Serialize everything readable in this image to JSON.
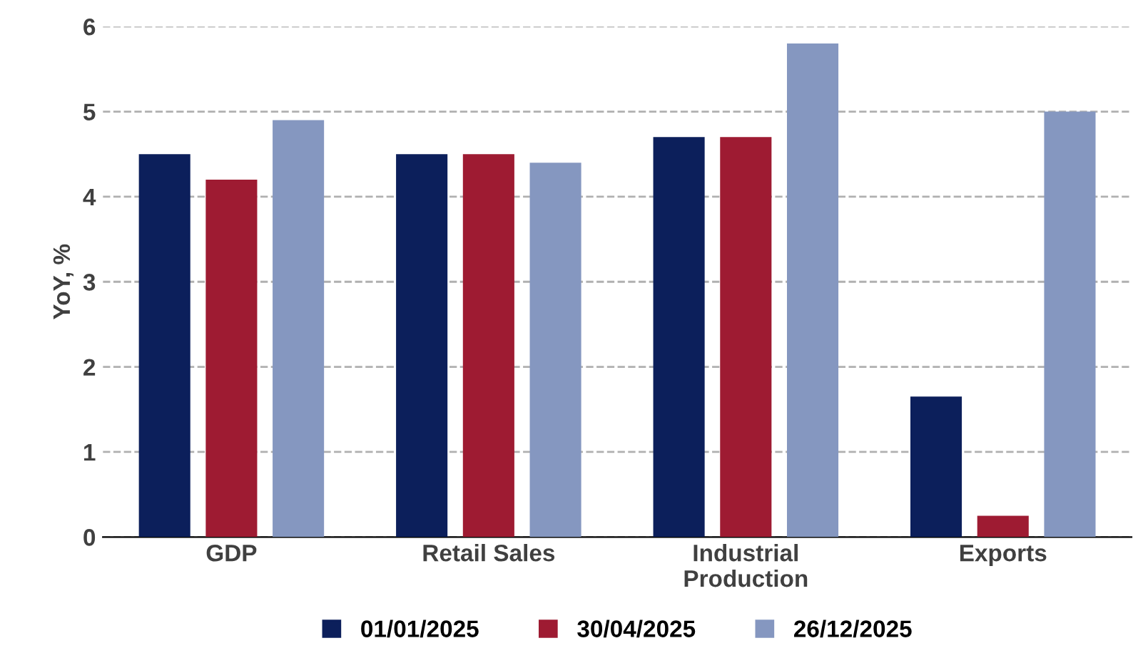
{
  "chart_data": {
    "type": "bar",
    "ylabel": "YoY, %",
    "categories": [
      "GDP",
      "Retail Sales",
      "Industrial\nProduction",
      "Exports"
    ],
    "series": [
      {
        "name": "01/01/2025",
        "color": "#0c1f5b",
        "values": [
          4.5,
          4.5,
          4.7,
          1.65
        ]
      },
      {
        "name": "30/04/2025",
        "color": "#9e1b32",
        "values": [
          4.2,
          4.5,
          4.7,
          0.25
        ]
      },
      {
        "name": "26/12/2025",
        "color": "#8597c0",
        "values": [
          4.9,
          4.4,
          5.8,
          5.0
        ]
      }
    ],
    "ylim": [
      0,
      6
    ],
    "yticks": [
      0,
      1,
      2,
      3,
      4,
      5,
      6
    ],
    "grid": "y",
    "legend": "bottom"
  }
}
